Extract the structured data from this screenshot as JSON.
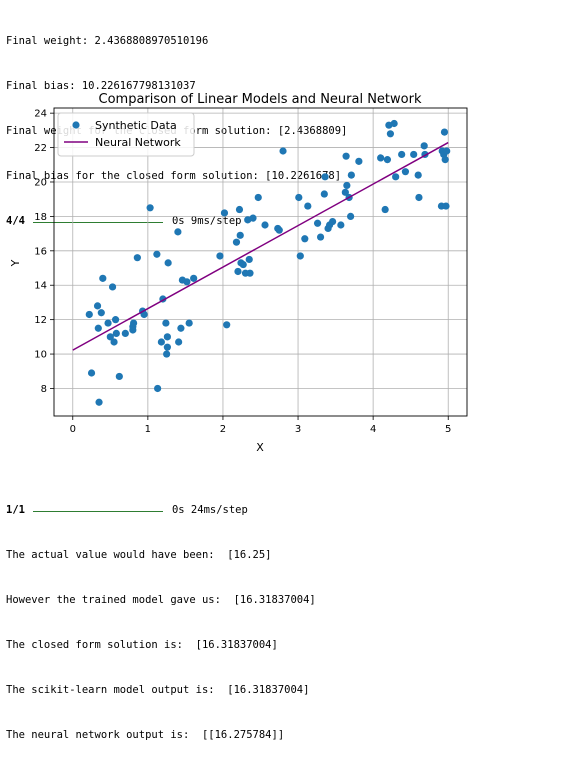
{
  "console_top": {
    "lines": [
      "Final weight: 2.4368808970510196",
      "Final bias: 10.226167798131037",
      "Final weight for the closed form solution: [2.4368809]",
      "Final bias for the closed form solution: [10.2261678]"
    ],
    "progress": {
      "count": "4/4",
      "timing": "0s 9ms/step"
    }
  },
  "console_bottom": {
    "progress": {
      "count": "1/1",
      "timing": "0s 24ms/step"
    },
    "lines": [
      "The actual value would have been:  [16.25]",
      "However the trained model gave us:  [16.31837004]",
      "The closed form solution is:  [16.31837004]",
      "The scikit-learn model output is:  [16.31837004]",
      "The neural network output is:  [[16.275784]]"
    ]
  },
  "chart_data": {
    "type": "scatter",
    "title": "Comparison of Linear Models and Neural Network",
    "xlabel": "X",
    "ylabel": "Y",
    "xlim": [
      -0.25,
      5.25
    ],
    "ylim": [
      6.4,
      24.3
    ],
    "xticks": [
      "0",
      "1",
      "2",
      "3",
      "4",
      "5"
    ],
    "yticks": [
      "8",
      "10",
      "12",
      "14",
      "16",
      "18",
      "20",
      "22",
      "24"
    ],
    "grid": true,
    "legend_position": "top-left",
    "series": [
      {
        "name": "Synthetic Data",
        "kind": "scatter",
        "color": "#1f77b4",
        "points": [
          [
            0.22,
            12.3
          ],
          [
            0.25,
            8.9
          ],
          [
            0.33,
            12.8
          ],
          [
            0.34,
            11.5
          ],
          [
            0.35,
            7.2
          ],
          [
            0.38,
            12.4
          ],
          [
            0.4,
            14.4
          ],
          [
            0.47,
            11.8
          ],
          [
            0.5,
            11.0
          ],
          [
            0.53,
            13.9
          ],
          [
            0.55,
            10.7
          ],
          [
            0.57,
            12.0
          ],
          [
            0.58,
            11.2
          ],
          [
            0.62,
            8.7
          ],
          [
            0.7,
            11.2
          ],
          [
            0.8,
            11.4
          ],
          [
            0.8,
            11.6
          ],
          [
            0.81,
            11.8
          ],
          [
            0.86,
            15.6
          ],
          [
            0.93,
            12.5
          ],
          [
            0.95,
            12.3
          ],
          [
            1.03,
            18.5
          ],
          [
            1.12,
            15.8
          ],
          [
            1.13,
            8.0
          ],
          [
            1.18,
            10.7
          ],
          [
            1.2,
            13.2
          ],
          [
            1.24,
            11.8
          ],
          [
            1.25,
            10.0
          ],
          [
            1.26,
            10.4
          ],
          [
            1.26,
            11.0
          ],
          [
            1.27,
            15.3
          ],
          [
            1.4,
            17.1
          ],
          [
            1.41,
            10.7
          ],
          [
            1.44,
            11.5
          ],
          [
            1.46,
            14.3
          ],
          [
            1.52,
            14.2
          ],
          [
            1.55,
            11.8
          ],
          [
            1.61,
            14.4
          ],
          [
            1.96,
            15.7
          ],
          [
            2.02,
            18.2
          ],
          [
            2.05,
            11.7
          ],
          [
            2.18,
            16.5
          ],
          [
            2.2,
            14.8
          ],
          [
            2.22,
            18.4
          ],
          [
            2.23,
            16.9
          ],
          [
            2.24,
            15.3
          ],
          [
            2.27,
            15.2
          ],
          [
            2.3,
            14.7
          ],
          [
            2.33,
            17.8
          ],
          [
            2.35,
            15.5
          ],
          [
            2.36,
            14.7
          ],
          [
            2.4,
            17.9
          ],
          [
            2.47,
            19.1
          ],
          [
            2.56,
            17.5
          ],
          [
            2.73,
            17.3
          ],
          [
            2.75,
            17.2
          ],
          [
            2.8,
            21.8
          ],
          [
            3.01,
            19.1
          ],
          [
            3.03,
            15.7
          ],
          [
            3.09,
            16.7
          ],
          [
            3.13,
            18.6
          ],
          [
            3.26,
            17.6
          ],
          [
            3.3,
            16.8
          ],
          [
            3.35,
            19.3
          ],
          [
            3.36,
            20.3
          ],
          [
            3.4,
            17.3
          ],
          [
            3.42,
            17.5
          ],
          [
            3.46,
            17.7
          ],
          [
            3.57,
            17.5
          ],
          [
            3.63,
            19.4
          ],
          [
            3.64,
            21.5
          ],
          [
            3.65,
            19.8
          ],
          [
            3.68,
            19.1
          ],
          [
            3.7,
            18.0
          ],
          [
            3.71,
            20.4
          ],
          [
            3.81,
            21.2
          ],
          [
            4.1,
            21.4
          ],
          [
            4.16,
            18.4
          ],
          [
            4.19,
            21.3
          ],
          [
            4.21,
            23.3
          ],
          [
            4.23,
            22.8
          ],
          [
            4.28,
            23.4
          ],
          [
            4.3,
            20.3
          ],
          [
            4.38,
            21.6
          ],
          [
            4.43,
            20.6
          ],
          [
            4.54,
            21.6
          ],
          [
            4.6,
            20.4
          ],
          [
            4.61,
            19.1
          ],
          [
            4.68,
            22.1
          ],
          [
            4.69,
            21.6
          ],
          [
            4.91,
            18.6
          ],
          [
            4.92,
            21.8
          ],
          [
            4.94,
            21.6
          ],
          [
            4.95,
            22.9
          ],
          [
            4.96,
            21.3
          ],
          [
            4.97,
            18.6
          ],
          [
            4.98,
            21.8
          ]
        ]
      },
      {
        "name": "Neural Network",
        "kind": "line",
        "color": "#800080",
        "x": [
          0,
          5
        ],
        "y": [
          10.23,
          22.29
        ]
      }
    ]
  }
}
